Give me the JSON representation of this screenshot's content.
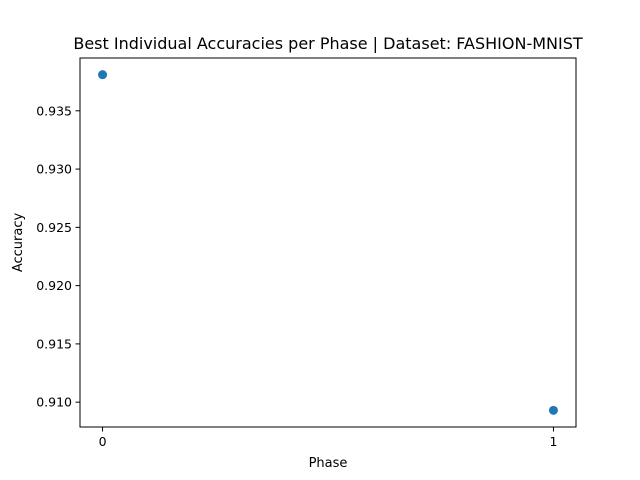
{
  "chart_data": {
    "type": "scatter",
    "title": "Best Individual Accuracies per Phase | Dataset: FASHION-MNIST",
    "xlabel": "Phase",
    "ylabel": "Accuracy",
    "x": [
      0,
      1
    ],
    "y": [
      0.9381,
      0.9093
    ],
    "xticks": [
      0,
      1
    ],
    "xtick_labels": [
      "0",
      "1"
    ],
    "yticks": [
      0.91,
      0.915,
      0.92,
      0.925,
      0.93,
      0.935
    ],
    "ytick_labels": [
      "0.910",
      "0.915",
      "0.920",
      "0.925",
      "0.930",
      "0.935"
    ],
    "xlim": [
      -0.05,
      1.05
    ],
    "ylim": [
      0.90787,
      0.93953
    ],
    "grid": false,
    "colors": {
      "marker": "#1f77b4",
      "axes": "#000000",
      "background": "#ffffff"
    }
  }
}
